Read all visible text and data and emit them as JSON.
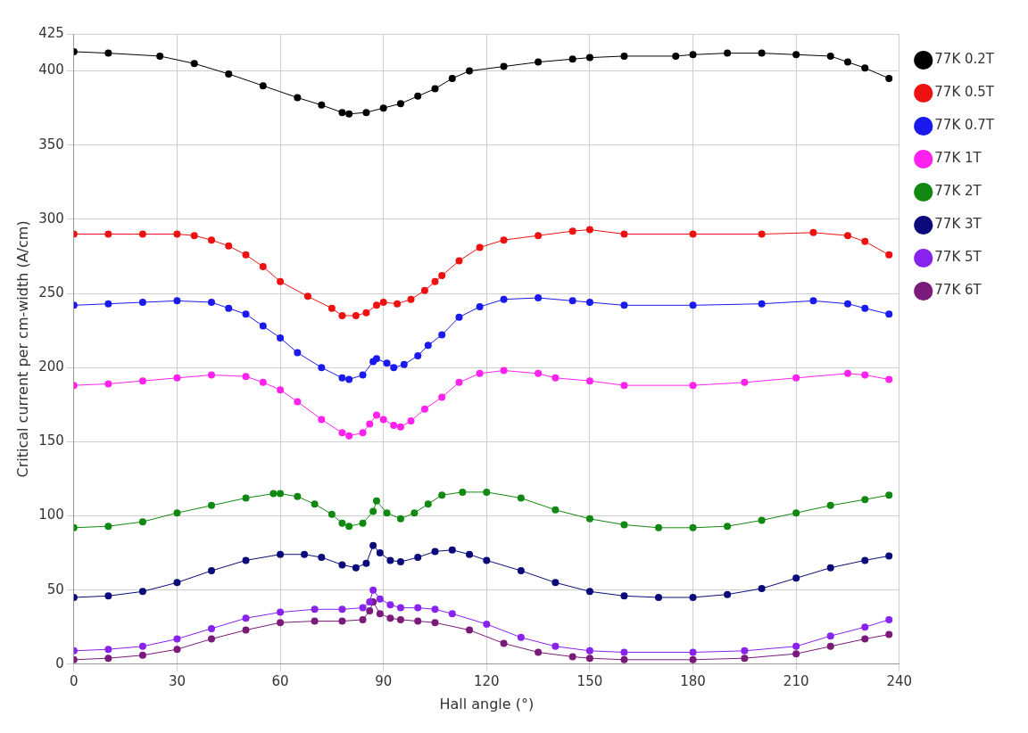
{
  "chart_data": {
    "type": "line",
    "xlabel": "Hall angle (°)",
    "ylabel": "Critical current per cm-width (A/cm)",
    "xlim": [
      0,
      240
    ],
    "xticks": [
      0,
      30,
      60,
      90,
      120,
      150,
      180,
      210,
      240
    ],
    "ylim": [
      0,
      425
    ],
    "yticks": [
      0,
      50,
      100,
      150,
      200,
      250,
      300,
      350,
      400,
      425
    ],
    "grid": true,
    "legend": "right",
    "marker": "circle",
    "line_style": "solid",
    "series": [
      {
        "name": "77K 0.2T",
        "color": "#000000",
        "x": [
          0,
          10,
          25,
          35,
          45,
          55,
          65,
          72,
          78,
          80,
          85,
          90,
          95,
          100,
          105,
          110,
          115,
          125,
          135,
          145,
          150,
          160,
          175,
          180,
          190,
          200,
          210,
          220,
          225,
          230,
          237
        ],
        "values": [
          413,
          412,
          410,
          405,
          398,
          390,
          382,
          377,
          372,
          371,
          372,
          375,
          378,
          383,
          388,
          395,
          400,
          403,
          406,
          408,
          409,
          410,
          410,
          411,
          412,
          412,
          411,
          410,
          406,
          402,
          395
        ]
      },
      {
        "name": "77K 0.5T",
        "color": "#ee1111",
        "x": [
          0,
          10,
          20,
          30,
          35,
          40,
          45,
          50,
          55,
          60,
          68,
          75,
          78,
          82,
          85,
          88,
          90,
          94,
          98,
          102,
          105,
          107,
          112,
          118,
          125,
          135,
          145,
          150,
          160,
          180,
          200,
          215,
          225,
          230,
          237
        ],
        "values": [
          290,
          290,
          290,
          290,
          289,
          286,
          282,
          276,
          268,
          258,
          248,
          240,
          235,
          235,
          237,
          242,
          244,
          243,
          246,
          252,
          258,
          262,
          272,
          281,
          286,
          289,
          292,
          293,
          290,
          290,
          290,
          291,
          289,
          285,
          276
        ]
      },
      {
        "name": "77K 0.7T",
        "color": "#1a1aee",
        "x": [
          0,
          10,
          20,
          30,
          40,
          45,
          50,
          55,
          60,
          65,
          72,
          78,
          80,
          84,
          87,
          88,
          91,
          93,
          96,
          100,
          103,
          107,
          112,
          118,
          125,
          135,
          145,
          150,
          160,
          180,
          200,
          215,
          225,
          230,
          237
        ],
        "values": [
          242,
          243,
          244,
          245,
          244,
          240,
          236,
          228,
          220,
          210,
          200,
          193,
          192,
          195,
          204,
          206,
          203,
          200,
          202,
          208,
          215,
          222,
          234,
          241,
          246,
          247,
          245,
          244,
          242,
          242,
          243,
          245,
          243,
          240,
          236
        ]
      },
      {
        "name": "77K 1T",
        "color": "#ff22ee",
        "x": [
          0,
          10,
          20,
          30,
          40,
          50,
          55,
          60,
          65,
          72,
          78,
          80,
          84,
          86,
          88,
          90,
          93,
          95,
          98,
          102,
          107,
          112,
          118,
          125,
          135,
          140,
          150,
          160,
          180,
          195,
          210,
          225,
          230,
          237
        ],
        "values": [
          188,
          189,
          191,
          193,
          195,
          194,
          190,
          185,
          177,
          165,
          156,
          154,
          156,
          162,
          168,
          165,
          161,
          160,
          164,
          172,
          180,
          190,
          196,
          198,
          196,
          193,
          191,
          188,
          188,
          190,
          193,
          196,
          195,
          192
        ]
      },
      {
        "name": "77K 2T",
        "color": "#118811",
        "x": [
          0,
          10,
          20,
          30,
          40,
          50,
          58,
          60,
          65,
          70,
          75,
          78,
          80,
          84,
          87,
          88,
          91,
          95,
          99,
          103,
          107,
          113,
          120,
          130,
          140,
          150,
          160,
          170,
          180,
          190,
          200,
          210,
          220,
          230,
          237
        ],
        "values": [
          92,
          93,
          96,
          102,
          107,
          112,
          115,
          115,
          113,
          108,
          101,
          95,
          93,
          95,
          103,
          110,
          102,
          98,
          102,
          108,
          114,
          116,
          116,
          112,
          104,
          98,
          94,
          92,
          92,
          93,
          97,
          102,
          107,
          111,
          114
        ]
      },
      {
        "name": "77K 3T",
        "color": "#0a0a7a",
        "x": [
          0,
          10,
          20,
          30,
          40,
          50,
          60,
          67,
          72,
          78,
          82,
          85,
          87,
          89,
          92,
          95,
          100,
          105,
          110,
          115,
          120,
          130,
          140,
          150,
          160,
          170,
          180,
          190,
          200,
          210,
          220,
          230,
          237
        ],
        "values": [
          45,
          46,
          49,
          55,
          63,
          70,
          74,
          74,
          72,
          67,
          65,
          68,
          80,
          75,
          70,
          69,
          72,
          76,
          77,
          74,
          70,
          63,
          55,
          49,
          46,
          45,
          45,
          47,
          51,
          58,
          65,
          70,
          73
        ]
      },
      {
        "name": "77K 5T",
        "color": "#8822ee",
        "x": [
          0,
          10,
          20,
          30,
          40,
          50,
          60,
          70,
          78,
          84,
          86,
          87,
          89,
          92,
          95,
          100,
          105,
          110,
          120,
          130,
          140,
          150,
          160,
          180,
          195,
          210,
          220,
          230,
          237
        ],
        "values": [
          9,
          10,
          12,
          17,
          24,
          31,
          35,
          37,
          37,
          38,
          42,
          50,
          44,
          40,
          38,
          38,
          37,
          34,
          27,
          18,
          12,
          9,
          8,
          8,
          9,
          12,
          19,
          25,
          30
        ]
      },
      {
        "name": "77K 6T",
        "color": "#7a1a7a",
        "x": [
          0,
          10,
          20,
          30,
          40,
          50,
          60,
          70,
          78,
          84,
          86,
          87,
          89,
          92,
          95,
          100,
          105,
          115,
          125,
          135,
          145,
          150,
          160,
          180,
          195,
          210,
          220,
          230,
          237
        ],
        "values": [
          3,
          4,
          6,
          10,
          17,
          23,
          28,
          29,
          29,
          30,
          36,
          42,
          34,
          31,
          30,
          29,
          28,
          23,
          14,
          8,
          5,
          4,
          3,
          3,
          4,
          7,
          12,
          17,
          20
        ]
      }
    ]
  }
}
